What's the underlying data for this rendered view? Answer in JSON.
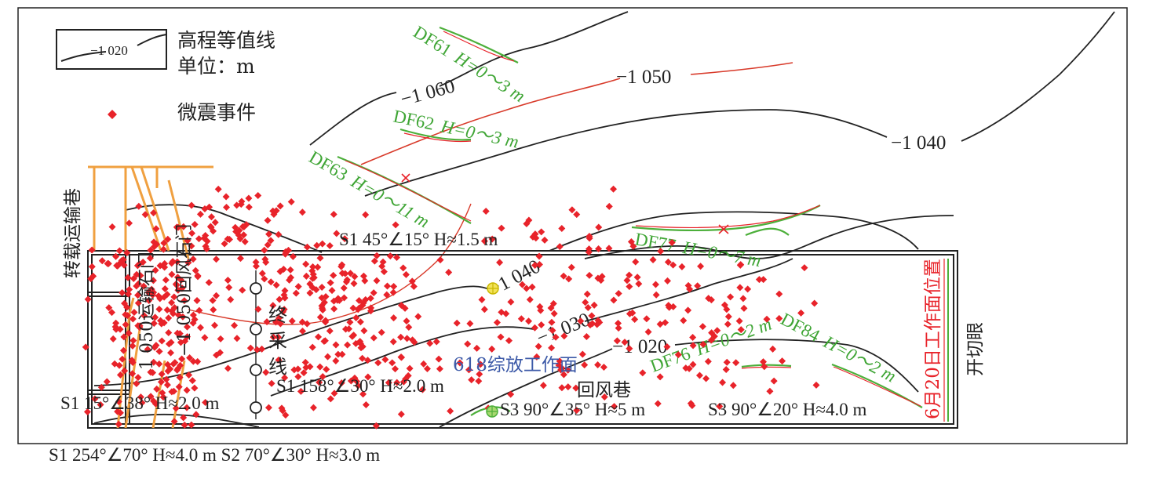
{
  "legend": {
    "contour_sample": "−1 020",
    "contour_title": "高程等值线",
    "contour_unit": "单位：m",
    "event_label": "微震事件"
  },
  "contours": [
    {
      "label": "−1 060"
    },
    {
      "label": "−1 050"
    },
    {
      "label": "−1 040"
    },
    {
      "label": "−1 040"
    },
    {
      "label": "−1 030"
    },
    {
      "label": "−1 020"
    }
  ],
  "faults": [
    {
      "name": "DF61",
      "throw": "H=0～3 m"
    },
    {
      "name": "DF62",
      "throw": "H=0～3 m"
    },
    {
      "name": "DF63",
      "throw": "H=0～11 m"
    },
    {
      "name": "DF77",
      "throw": "H=0～7 m"
    },
    {
      "name": "DF76",
      "throw": "H=0～2 m"
    },
    {
      "name": "DF84",
      "throw": "H=0～2 m"
    }
  ],
  "structures": [
    "S1 45°∠15° H≈1.5 m",
    "S1 158°∠30° H≈2.0 m",
    "S1 15°∠38° H≈2.0 m",
    "S3 90°∠35° H≈5 m",
    "S3 90°∠20° H≈4.0 m",
    "S1 254°∠70° H≈4.0 m  S2 70°∠30° H≈3.0 m"
  ],
  "roadways": {
    "transfer": "转载运输巷",
    "haulage": "1 050运输石门",
    "return_crosscut": "−1 050回风石门",
    "terminal": "终采线",
    "face": "618综放工作面",
    "return_airway": "回风巷",
    "cut": "开切眼",
    "face_position": "6月20日工作面位置"
  },
  "colors": {
    "event": "#e8232a",
    "fault": "#4caf3a",
    "fault_text": "#3fa535",
    "face_text": "#3d5aa8",
    "position_text": "#e8232a",
    "roadway": "#f0a040"
  },
  "microseismic_event_count": 700
}
